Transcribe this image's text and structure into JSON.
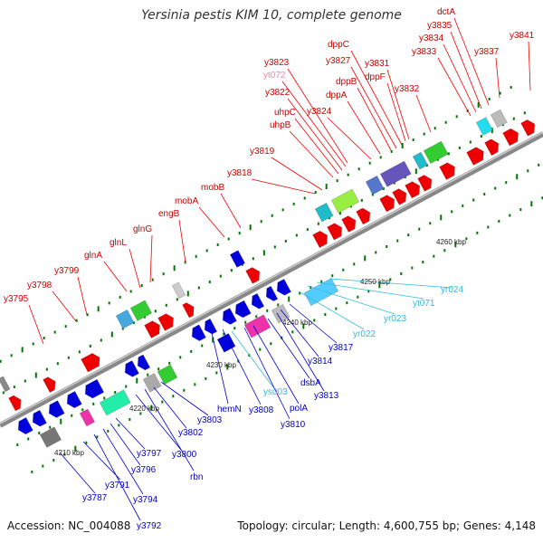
{
  "title": "Yersinia pestis KIM 10, complete genome",
  "footer": {
    "accession": "Accession: NC_004088",
    "topology": "Topology: circular; Length: 4,600,755 bp; Genes: 4,148"
  },
  "colors": {
    "top_label": "#cc0000",
    "bottom_label": "#0000cc",
    "rna_label": "#33bbdd",
    "pseudo_label": "#ee88aa",
    "forward_gene": "#ee0000",
    "reverse_gene": "#0000dd",
    "backbone": "#888888",
    "tick": "#007700"
  },
  "scale_labels": [
    "4210 kbp",
    "4220 kbp",
    "4230 kbp",
    "4240 kbp",
    "4250 kbp",
    "4260 kbp"
  ],
  "top_labels": [
    "y3795",
    "y3798",
    "y3799",
    "glnA",
    "glnL",
    "glnG",
    "engB",
    "mobA",
    "mobB",
    "y3818",
    "y3819",
    "uhpB",
    "uhpC",
    "y3822",
    "yt072",
    "y3823",
    "y3824",
    "dppA",
    "dppB",
    "y3827",
    "dppC",
    "dppF",
    "y3831",
    "y3832",
    "y3833",
    "y3834",
    "y3835",
    "dctA",
    "y3837",
    "y3841"
  ],
  "bottom_labels": [
    "y3787",
    "y3791",
    "y3792",
    "y3794",
    "y3796",
    "y3797",
    "y3800",
    "rbn",
    "y3802",
    "y3803",
    "hemN",
    "y3808",
    "ys003",
    "y3810",
    "polA",
    "dsbA",
    "y3813",
    "y3814",
    "y3817",
    "yr022",
    "yr023",
    "yt071",
    "yr024"
  ]
}
